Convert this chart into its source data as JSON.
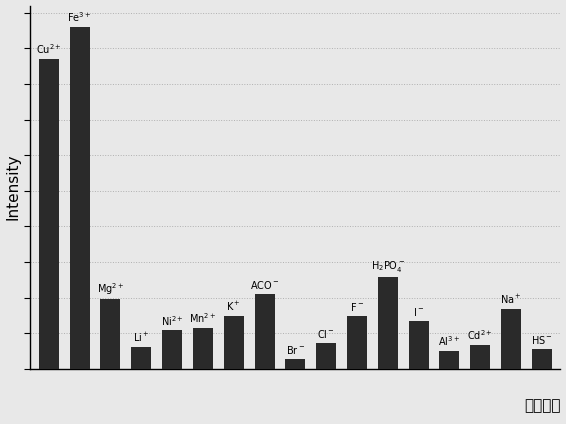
{
  "labels_display": [
    "Cu$^{2+}$",
    "Fe$^{3+}$",
    "Mg$^{2+}$",
    "Li$^+$",
    "Ni$^{2+}$",
    "Mn$^{2+}$",
    "K$^+$",
    "ACO$^-$",
    "Br$^-$",
    "Cl$^-$",
    "F$^-$",
    "H$_2$PO$_4^-$",
    "I$^-$",
    "Al$^{3+}$",
    "Cd$^{2+}$",
    "Na$^+$",
    "HS$^-$"
  ],
  "values": [
    870,
    960,
    195,
    62,
    108,
    115,
    148,
    210,
    28,
    72,
    148,
    258,
    135,
    50,
    68,
    168,
    55
  ],
  "bar_color": "#2a2a2a",
  "background_color": "#e8e8e8",
  "ylabel": "Intensity",
  "xlabel": "各种离子",
  "ylim": [
    0,
    1020
  ],
  "grid_color": "#d0d0d0",
  "title": ""
}
